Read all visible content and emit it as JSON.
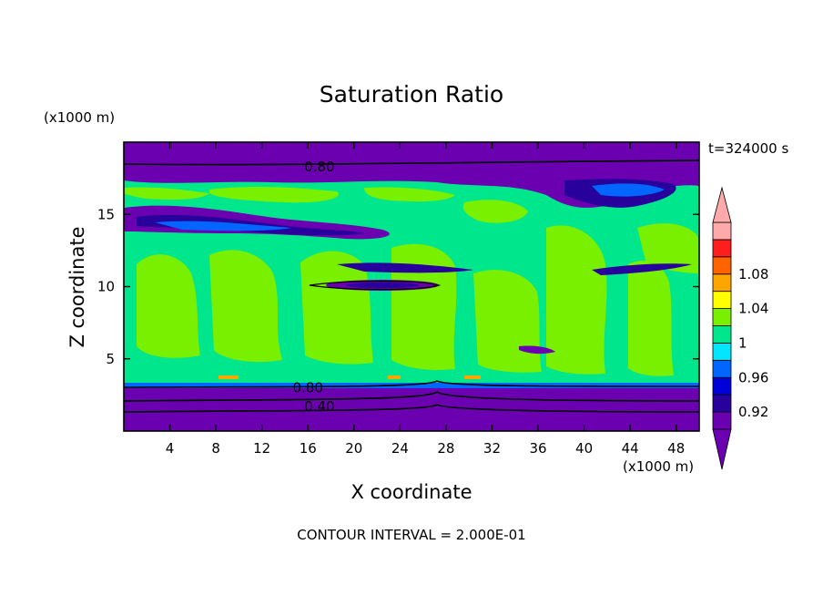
{
  "chart_data": {
    "type": "heatmap",
    "title": "Saturation Ratio",
    "xlabel": "X coordinate",
    "ylabel": "Z coordinate",
    "x_unit": "(x1000 m)",
    "y_unit": "(x1000 m)",
    "time_label": "t=324000 s",
    "footer": "CONTOUR INTERVAL = 2.000E-01",
    "xlim": [
      0,
      50
    ],
    "ylim": [
      0,
      20
    ],
    "x_ticks": [
      4,
      8,
      12,
      16,
      20,
      24,
      28,
      32,
      36,
      40,
      44,
      48
    ],
    "x_tick_labels": [
      "4",
      "8",
      "12",
      "16",
      "20",
      "24",
      "28",
      "32",
      "36",
      "40",
      "44",
      "48"
    ],
    "y_ticks": [
      5,
      10,
      15
    ],
    "y_tick_labels": [
      "5",
      "10",
      "15"
    ],
    "contour_labels": [
      {
        "text": "0.80",
        "x": 17,
        "z": 18.3
      },
      {
        "text": "0.80",
        "x": 16,
        "z": 3.0
      },
      {
        "text": "0.40",
        "x": 17,
        "z": 1.7
      }
    ],
    "colorbar": {
      "levels": [
        0.92,
        0.94,
        0.96,
        0.98,
        1.0,
        1.02,
        1.04,
        1.06,
        1.08,
        1.1
      ],
      "tick_labels": [
        "0.92",
        "0.96",
        "1",
        "1.04",
        "1.08"
      ],
      "tick_values": [
        0.92,
        0.96,
        1.0,
        1.04,
        1.08
      ],
      "colors": [
        "#6a00b0",
        "#28009c",
        "#0000d8",
        "#0066ff",
        "#00e6ff",
        "#00e68c",
        "#78f000",
        "#ffff00",
        "#ffa500",
        "#ff6400",
        "#ff1e1e",
        "#ffaaaa"
      ],
      "under_color": "#6a00b0",
      "over_color": "#ffaaaa"
    }
  }
}
